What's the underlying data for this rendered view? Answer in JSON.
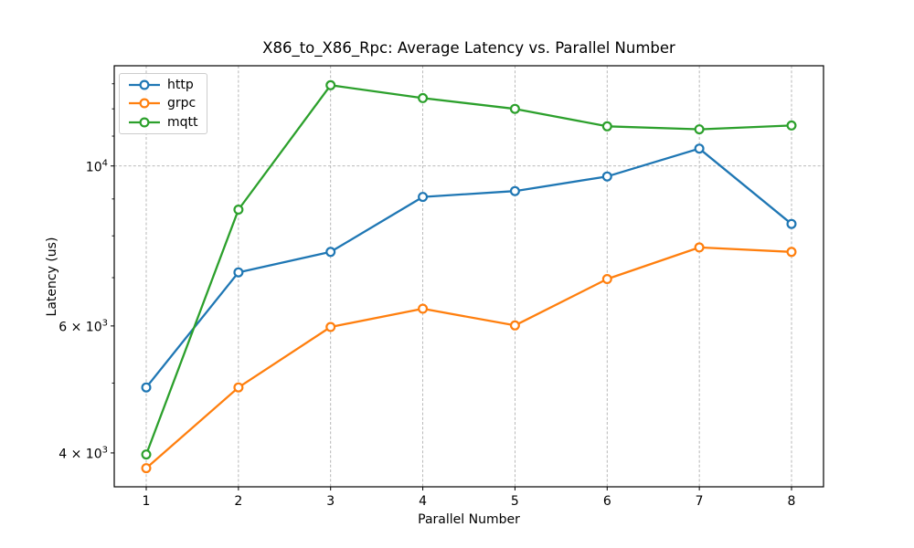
{
  "chart_data": {
    "type": "line",
    "title": "X86_to_X86_Rpc: Average Latency vs. Parallel Number",
    "xlabel": "Parallel Number",
    "ylabel": "Latency (us)",
    "x": [
      1,
      2,
      3,
      4,
      5,
      6,
      7,
      8
    ],
    "series": [
      {
        "name": "http",
        "color": "#1f77b4",
        "values": [
          4930,
          7120,
          7600,
          9060,
          9230,
          9670,
          10570,
          8310
        ]
      },
      {
        "name": "grpc",
        "color": "#ff7f0e",
        "values": [
          3810,
          4930,
          5980,
          6340,
          6010,
          6970,
          7710,
          7600
        ]
      },
      {
        "name": "mqtt",
        "color": "#2ca02c",
        "values": [
          3980,
          8700,
          12940,
          12420,
          12000,
          11350,
          11240,
          11380
        ]
      }
    ],
    "yscale": "log",
    "xlim": [
      0.653,
      8.347
    ],
    "ylim": [
      3590,
      13770
    ],
    "grid": true,
    "legend_position": "upper left",
    "xticks": [
      "1",
      "2",
      "3",
      "4",
      "5",
      "6",
      "7",
      "8"
    ],
    "yticks_labeled": [
      {
        "value": 10000,
        "pre": "10",
        "sup": "4",
        "gridline": true
      },
      {
        "value": 6000,
        "pre": "6 × 10",
        "sup": "3",
        "gridline": false
      },
      {
        "value": 4000,
        "pre": "4 × 10",
        "sup": "3",
        "gridline": false
      }
    ],
    "yticks_minor": [
      5000,
      7000,
      8000,
      9000,
      11000,
      12000,
      13000
    ],
    "grid_color": "#b0b0b0",
    "spine_color": "#000000"
  }
}
